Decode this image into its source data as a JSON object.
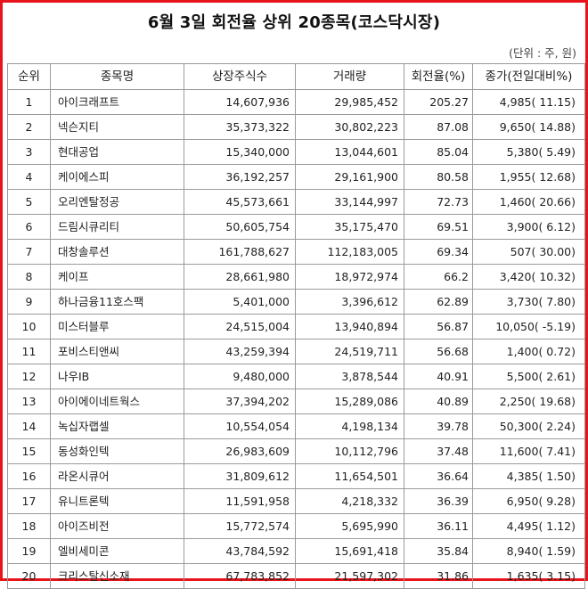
{
  "title": "6월 3일 회전율 상위 20종목(코스닥시장)",
  "unit_note": "(단위 : 주, 원)",
  "headers": [
    "순위",
    "종목명",
    "상장주식수",
    "거래량",
    "회전율(%)",
    "종가(전일대비%)"
  ],
  "rows": [
    {
      "rank": "1",
      "name": "아이크래프트",
      "listed": "14,607,936",
      "volume": "29,985,452",
      "turnover": "205.27",
      "close": "4,985(  11.15)"
    },
    {
      "rank": "2",
      "name": "넥슨지티",
      "listed": "35,373,322",
      "volume": "30,802,223",
      "turnover": "87.08",
      "close": "9,650(  14.88)"
    },
    {
      "rank": "3",
      "name": "현대공업",
      "listed": "15,340,000",
      "volume": "13,044,601",
      "turnover": "85.04",
      "close": "5,380(   5.49)"
    },
    {
      "rank": "4",
      "name": "케이에스피",
      "listed": "36,192,257",
      "volume": "29,161,900",
      "turnover": "80.58",
      "close": "1,955(  12.68)"
    },
    {
      "rank": "5",
      "name": "오리엔탈정공",
      "listed": "45,573,661",
      "volume": "33,144,997",
      "turnover": "72.73",
      "close": "1,460(  20.66)"
    },
    {
      "rank": "6",
      "name": "드림시큐리티",
      "listed": "50,605,754",
      "volume": "35,175,470",
      "turnover": "69.51",
      "close": "3,900(   6.12)"
    },
    {
      "rank": "7",
      "name": "대창솔루션",
      "listed": "161,788,627",
      "volume": "112,183,005",
      "turnover": "69.34",
      "close": "507(  30.00)"
    },
    {
      "rank": "8",
      "name": "케이프",
      "listed": "28,661,980",
      "volume": "18,972,974",
      "turnover": "66.2",
      "close": "3,420(  10.32)"
    },
    {
      "rank": "9",
      "name": "하나금융11호스팩",
      "listed": "5,401,000",
      "volume": "3,396,612",
      "turnover": "62.89",
      "close": "3,730(   7.80)"
    },
    {
      "rank": "10",
      "name": "미스터블루",
      "listed": "24,515,004",
      "volume": "13,940,894",
      "turnover": "56.87",
      "close": "10,050(  -5.19)"
    },
    {
      "rank": "11",
      "name": "포비스티앤씨",
      "listed": "43,259,394",
      "volume": "24,519,711",
      "turnover": "56.68",
      "close": "1,400(   0.72)"
    },
    {
      "rank": "12",
      "name": "나우IB",
      "listed": "9,480,000",
      "volume": "3,878,544",
      "turnover": "40.91",
      "close": "5,500(   2.61)"
    },
    {
      "rank": "13",
      "name": "아이에이네트웍스",
      "listed": "37,394,202",
      "volume": "15,289,086",
      "turnover": "40.89",
      "close": "2,250(  19.68)"
    },
    {
      "rank": "14",
      "name": "녹십자랩셀",
      "listed": "10,554,054",
      "volume": "4,198,134",
      "turnover": "39.78",
      "close": "50,300(   2.24)"
    },
    {
      "rank": "15",
      "name": "동성화인텍",
      "listed": "26,983,609",
      "volume": "10,112,796",
      "turnover": "37.48",
      "close": "11,600(   7.41)"
    },
    {
      "rank": "16",
      "name": "라온시큐어",
      "listed": "31,809,612",
      "volume": "11,654,501",
      "turnover": "36.64",
      "close": "4,385(   1.50)"
    },
    {
      "rank": "17",
      "name": "유니트론텍",
      "listed": "11,591,958",
      "volume": "4,218,332",
      "turnover": "36.39",
      "close": "6,950(   9.28)"
    },
    {
      "rank": "18",
      "name": "아이즈비전",
      "listed": "15,772,574",
      "volume": "5,695,990",
      "turnover": "36.11",
      "close": "4,495(   1.12)"
    },
    {
      "rank": "19",
      "name": "엘비세미콘",
      "listed": "43,784,592",
      "volume": "15,691,418",
      "turnover": "35.84",
      "close": "8,940(   1.59)"
    },
    {
      "rank": "20",
      "name": "크리스탈신소재",
      "listed": "67,783,852",
      "volume": "21,597,302",
      "turnover": "31.86",
      "close": "1,635(   3.15)"
    }
  ]
}
